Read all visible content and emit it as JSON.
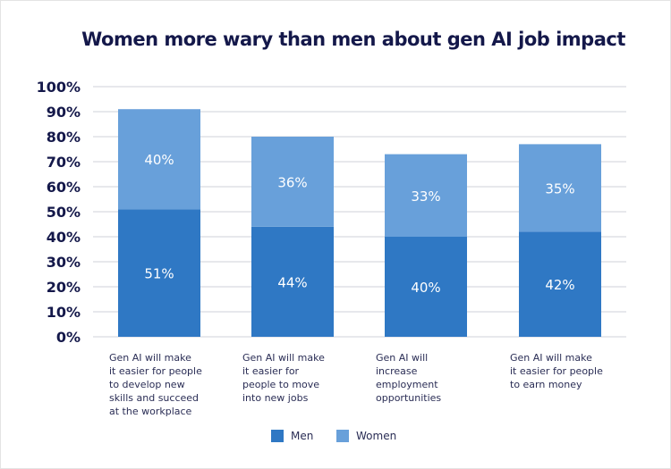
{
  "chart_data": {
    "type": "bar",
    "stacked": true,
    "title": "Women more wary than men about gen AI job impact",
    "categories": [
      "Gen AI will make it easier for people to develop new skills and succeed at the workplace",
      "Gen AI will make it easier for people to move into new jobs",
      "Gen AI will increase employment opportunities",
      "Gen AI will make it easier for people to earn money"
    ],
    "category_lines": [
      [
        "Gen AI will make",
        "it easier for people",
        "to develop new",
        "skills and succeed",
        "at the workplace"
      ],
      [
        "Gen AI will make",
        "it easier for",
        "people to move",
        "into new jobs"
      ],
      [
        "Gen AI will",
        "increase",
        "employment",
        "opportunities"
      ],
      [
        "Gen AI will make",
        "it easier for people",
        "to earn money"
      ]
    ],
    "series": [
      {
        "name": "Men",
        "values": [
          51,
          44,
          40,
          42
        ],
        "labels": [
          "51%",
          "44%",
          "40%",
          "42%"
        ],
        "color": "#2f78c4"
      },
      {
        "name": "Women",
        "values": [
          40,
          36,
          33,
          35
        ],
        "labels": [
          "40%",
          "36%",
          "33%",
          "35%"
        ],
        "color": "#68a0da"
      }
    ],
    "ylim": [
      0,
      100
    ],
    "yticks": [
      "0%",
      "10%",
      "20%",
      "30%",
      "40%",
      "50%",
      "60%",
      "70%",
      "80%",
      "90%",
      "100%"
    ],
    "grid": true,
    "legend": "bottom"
  }
}
